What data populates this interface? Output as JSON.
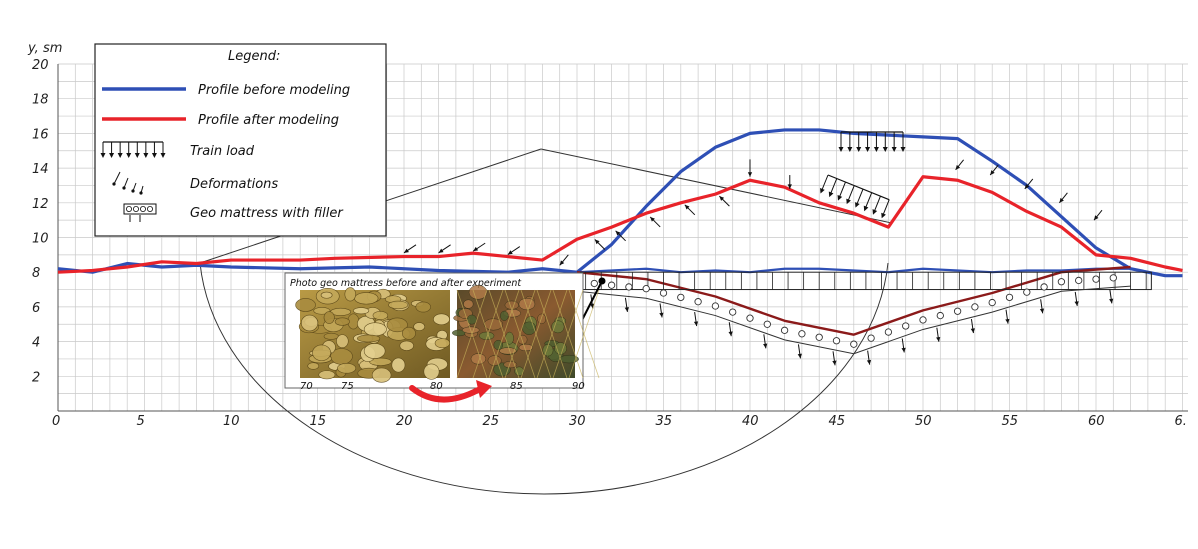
{
  "chart_data": {
    "type": "line",
    "ylabel": "y, sm",
    "xlim": [
      0,
      65
    ],
    "ylim": [
      0,
      20
    ],
    "x_ticks": [
      "0",
      "5",
      "10",
      "15",
      "20",
      "25",
      "30",
      "35",
      "40",
      "45",
      "50",
      "55",
      "60",
      "6."
    ],
    "y_ticks": [
      "2",
      "4",
      "6",
      "8",
      "10",
      "12",
      "14",
      "16",
      "18",
      "20"
    ],
    "legend": {
      "title": "Legend:",
      "items": [
        {
          "label": "Profile before modeling",
          "color": "#2e4fb5",
          "kind": "line"
        },
        {
          "label": "Profile after modeling",
          "color": "#e8232a",
          "kind": "line"
        },
        {
          "label": "Train load",
          "kind": "load-icon"
        },
        {
          "label": "Deformations",
          "kind": "arrows-icon"
        },
        {
          "label": "Geo mattress with filler",
          "kind": "mattress-icon"
        }
      ],
      "placement": "top-left"
    },
    "series": [
      {
        "name": "Profile before modeling",
        "color": "#2e4fb5",
        "x": [
          0,
          2,
          4,
          6,
          8,
          10,
          14,
          18,
          22,
          26,
          28,
          30,
          32,
          34,
          36,
          38,
          40,
          42,
          44,
          46,
          48,
          50,
          52,
          54,
          56,
          58,
          60,
          62,
          64,
          65
        ],
        "y": [
          8.2,
          8.0,
          8.5,
          8.3,
          8.4,
          8.3,
          8.2,
          8.3,
          8.1,
          8.0,
          8.2,
          8.0,
          9.6,
          11.8,
          13.8,
          15.2,
          16.0,
          16.2,
          16.2,
          16.0,
          15.9,
          15.8,
          15.7,
          14.4,
          13.0,
          11.2,
          9.4,
          8.2,
          7.8,
          7.8
        ]
      },
      {
        "name": "Profile after modeling",
        "color": "#e8232a",
        "x": [
          0,
          2,
          4,
          6,
          8,
          10,
          14,
          16,
          20,
          22,
          24,
          26,
          28,
          30,
          32,
          34,
          36,
          38,
          40,
          42,
          44,
          46,
          48,
          50,
          52,
          54,
          56,
          58,
          60,
          62,
          64,
          65
        ],
        "y": [
          8.0,
          8.1,
          8.3,
          8.6,
          8.5,
          8.7,
          8.7,
          8.8,
          8.9,
          8.9,
          9.1,
          8.9,
          8.7,
          9.9,
          10.6,
          11.4,
          12.0,
          12.5,
          13.3,
          12.9,
          12.0,
          11.4,
          10.6,
          13.5,
          13.3,
          12.6,
          11.5,
          10.6,
          9.0,
          8.8,
          8.3,
          8.1
        ]
      },
      {
        "name": "",
        "color": "#2e4fb5",
        "x": [
          30,
          32,
          34,
          36,
          38,
          40,
          42,
          44,
          46,
          48,
          50,
          52,
          54,
          56,
          58,
          60,
          62
        ],
        "y": [
          8.0,
          8.1,
          8.2,
          8.0,
          8.1,
          8.0,
          8.2,
          8.2,
          8.1,
          8.0,
          8.2,
          8.1,
          8.0,
          8.1,
          8.1,
          8.2,
          8.2
        ]
      },
      {
        "name": "",
        "color": "#8b1a1a",
        "x": [
          30,
          34,
          38,
          42,
          46,
          50,
          54,
          58,
          62
        ],
        "y": [
          8.0,
          7.6,
          6.6,
          5.2,
          4.4,
          5.8,
          6.8,
          8.0,
          8.3
        ]
      }
    ],
    "inset": {
      "title": "Photo geo mattress before and after experiment",
      "tick_labels": [
        "70",
        "75",
        "80",
        "85",
        "90"
      ]
    },
    "grid": true
  }
}
